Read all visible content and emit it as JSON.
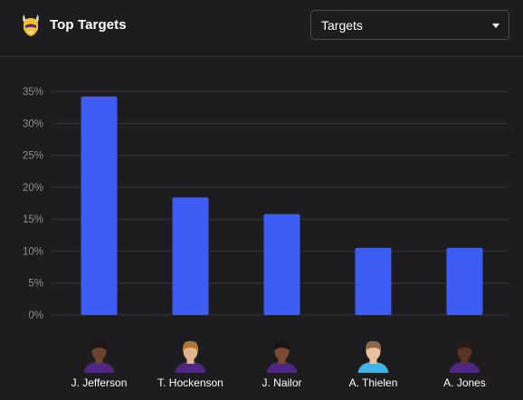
{
  "header": {
    "title": "Top Targets",
    "logo_icon": "vikings-helmet-icon"
  },
  "metric_select": {
    "selected": "Targets"
  },
  "colors": {
    "background": "#1d1d1f",
    "bar": "#3d5df5",
    "grid": "#39393d",
    "tick_text": "#8d8d93"
  },
  "chart_data": {
    "type": "bar",
    "categories": [
      "J. Jefferson",
      "T. Hockenson",
      "J. Nailor",
      "A. Thielen",
      "A. Jones"
    ],
    "values": [
      34.2,
      18.4,
      15.8,
      10.5,
      10.5
    ],
    "value_unit": "%",
    "ylim": [
      0,
      35
    ],
    "yticks": [
      0,
      5,
      10,
      15,
      20,
      25,
      30,
      35
    ],
    "ytick_labels": [
      "0%",
      "5%",
      "10%",
      "15%",
      "20%",
      "25%",
      "30%",
      "35%"
    ],
    "grid": true,
    "category_icons": [
      "player-headshot-icon",
      "player-headshot-icon",
      "player-headshot-icon",
      "player-headshot-icon",
      "player-headshot-icon"
    ],
    "title": "",
    "xlabel": "",
    "ylabel": ""
  }
}
